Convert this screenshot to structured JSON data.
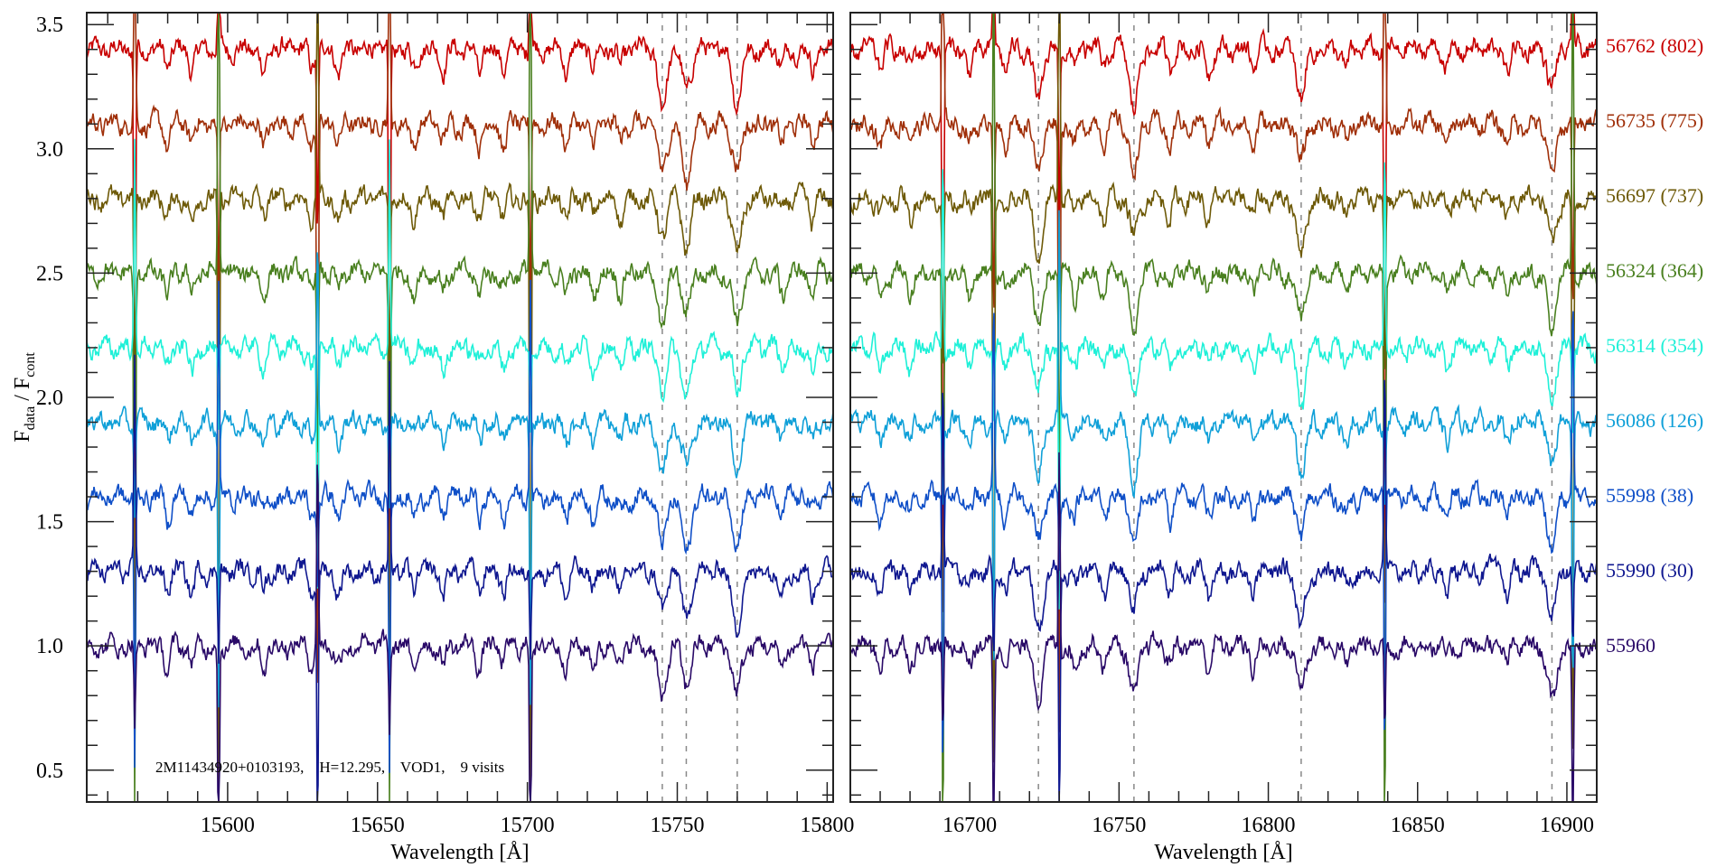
{
  "chart_data": {
    "type": "line",
    "title": "",
    "annotation": "2M11434920+0103193,    H=12.295,    VOD1,    9 visits",
    "ylabel_main": "F",
    "ylabel_sub1": "data",
    "ylabel_mid": " / F",
    "ylabel_sub2": "cont",
    "ylim": [
      0.372,
      3.548
    ],
    "yticks": [
      0.5,
      1.0,
      1.5,
      2.0,
      2.5,
      3.0,
      3.5
    ],
    "ytick_labels": [
      "0.5",
      "1.0",
      "1.5",
      "2.0",
      "2.5",
      "3.0",
      "3.5"
    ],
    "panels": [
      {
        "xlabel": "Wavelength [Å]",
        "xlim": [
          15553,
          15802
        ],
        "xticks": [
          15600,
          15650,
          15700,
          15750,
          15800
        ],
        "xtick_labels": [
          "15600",
          "15650",
          "15700",
          "15750",
          "15800"
        ],
        "dashed_lines": [
          15745,
          15753,
          15770
        ],
        "absorption_lines": [
          15580,
          15588,
          15612,
          15628,
          15637,
          15662,
          15672,
          15684,
          15692,
          15713,
          15722,
          15731,
          15745,
          15753,
          15770,
          15785,
          15795
        ],
        "sky_lines": [
          15569,
          15597,
          15630,
          15654,
          15701
        ]
      },
      {
        "xlabel": "Wavelength [Å]",
        "xlim": [
          16660,
          16910
        ],
        "xticks": [
          16700,
          16750,
          16800,
          16850,
          16900
        ],
        "xtick_labels": [
          "16700",
          "16750",
          "16800",
          "16850",
          "16900"
        ],
        "dashed_lines": [
          16723,
          16755,
          16811,
          16895
        ],
        "absorption_lines": [
          16670,
          16680,
          16700,
          16712,
          16723,
          16735,
          16745,
          16755,
          16767,
          16780,
          16795,
          16811,
          16826,
          16860,
          16880,
          16895
        ],
        "sky_lines": [
          16691,
          16708,
          16730,
          16839,
          16902
        ]
      }
    ],
    "series": [
      {
        "name": "56762 (802)",
        "offset": 2.4,
        "color": "#c80000"
      },
      {
        "name": "56735 (775)",
        "offset": 2.1,
        "color": "#a0300a"
      },
      {
        "name": "56697 (737)",
        "offset": 1.8,
        "color": "#6e5a08"
      },
      {
        "name": "56324 (364)",
        "offset": 1.5,
        "color": "#4a8020"
      },
      {
        "name": "56314 (354)",
        "offset": 1.2,
        "color": "#20f0d8"
      },
      {
        "name": "56086 (126)",
        "offset": 0.9,
        "color": "#10a0d8"
      },
      {
        "name": "55998 (38)",
        "offset": 0.6,
        "color": "#1050c8"
      },
      {
        "name": "55990 (30)",
        "offset": 0.3,
        "color": "#101890"
      },
      {
        "name": "55960",
        "offset": 0.0,
        "color": "#2a0a68"
      }
    ]
  }
}
